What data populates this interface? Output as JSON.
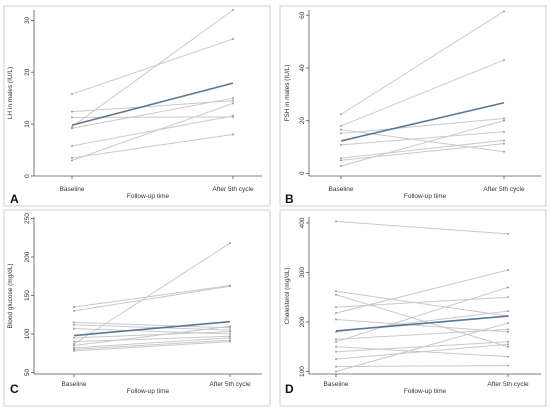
{
  "chart_data": [
    {
      "panel": "A",
      "type": "line",
      "categories": [
        "Baseline",
        "After 5th cycle"
      ],
      "xlabel": "Follow-up time",
      "ylabel": "LH in males (IU/L)",
      "ylim": [
        0,
        32
      ],
      "yticks": [
        0,
        10,
        20,
        30
      ],
      "individual_lines": [
        [
          9.5,
          32.0
        ],
        [
          15.8,
          26.4
        ],
        [
          9.2,
          15.0
        ],
        [
          12.4,
          14.5
        ],
        [
          11.3,
          11.4
        ],
        [
          5.8,
          11.6
        ],
        [
          3.0,
          14.0
        ],
        [
          3.5,
          8.0
        ]
      ],
      "mean_line": [
        9.8,
        17.9
      ]
    },
    {
      "panel": "B",
      "type": "line",
      "categories": [
        "Baseline",
        "After 5th cycle"
      ],
      "xlabel": "Follow-up time",
      "ylabel": "FSH in males (IU/L)",
      "ylim": [
        -1,
        62
      ],
      "yticks": [
        0,
        20,
        40,
        60
      ],
      "individual_lines": [
        [
          22.4,
          61.5
        ],
        [
          18.0,
          43.0
        ],
        [
          16.6,
          8.2
        ],
        [
          15.2,
          20.8
        ],
        [
          10.8,
          15.8
        ],
        [
          5.8,
          12.5
        ],
        [
          5.0,
          11.3
        ],
        [
          2.8,
          20.0
        ]
      ],
      "mean_line": [
        12.3,
        26.8
      ]
    },
    {
      "panel": "C",
      "type": "line",
      "categories": [
        "Baseline",
        "After 5th cycle"
      ],
      "xlabel": "Follow-up time",
      "ylabel": "Blood glucose (mg/dL)",
      "ylim": [
        48,
        252
      ],
      "yticks": [
        50,
        100,
        150,
        200,
        250
      ],
      "individual_lines": [
        [
          87,
          218
        ],
        [
          135,
          163
        ],
        [
          130,
          162
        ],
        [
          115,
          108
        ],
        [
          112,
          105
        ],
        [
          107,
          100
        ],
        [
          95,
          103
        ],
        [
          90,
          97
        ],
        [
          85,
          110
        ],
        [
          82,
          95
        ],
        [
          80,
          92
        ],
        [
          78,
          90
        ]
      ],
      "mean_line": [
        98,
        116
      ]
    },
    {
      "panel": "D",
      "type": "line",
      "categories": [
        "Baseline",
        "After 5th cycle"
      ],
      "xlabel": "Follow-up time",
      "ylabel": "Cholesterol (mg/dL)",
      "ylim": [
        95,
        412
      ],
      "yticks": [
        100,
        200,
        300,
        400
      ],
      "individual_lines": [
        [
          403,
          378
        ],
        [
          262,
          212
        ],
        [
          255,
          150
        ],
        [
          230,
          250
        ],
        [
          218,
          305
        ],
        [
          205,
          180
        ],
        [
          180,
          222
        ],
        [
          165,
          185
        ],
        [
          160,
          270
        ],
        [
          150,
          130
        ],
        [
          140,
          160
        ],
        [
          125,
          155
        ],
        [
          110,
          112
        ],
        [
          100,
          198
        ]
      ],
      "mean_line": [
        182,
        212
      ]
    }
  ],
  "panel_labels": [
    "A",
    "B",
    "C",
    "D"
  ],
  "colors": {
    "individual": "#c9c9c9",
    "mean": "#5b7890",
    "axis": "#555555",
    "frame": "#cfcfcf"
  }
}
